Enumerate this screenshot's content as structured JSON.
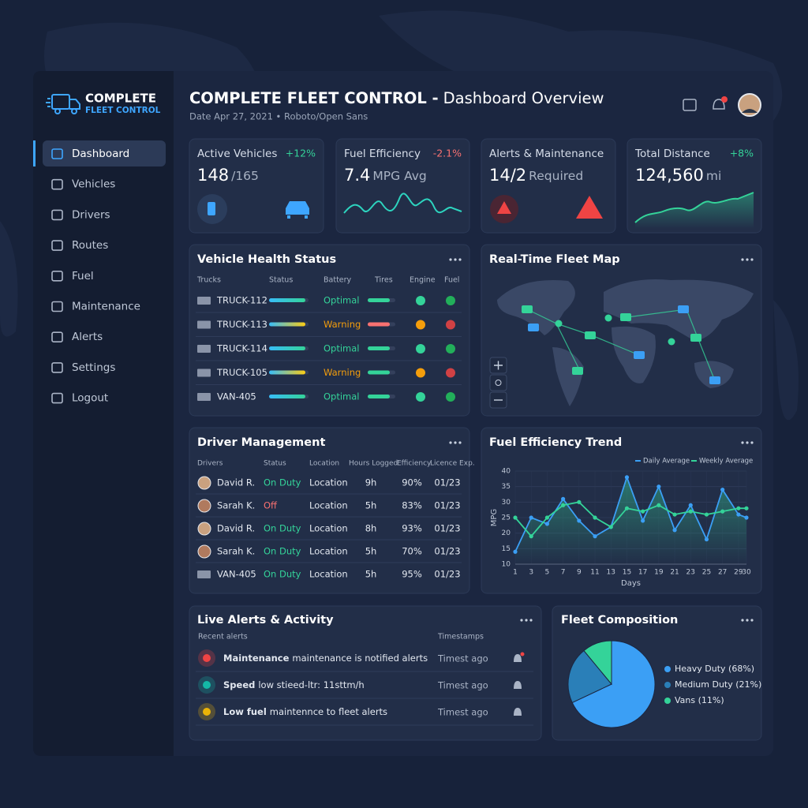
{
  "brand": {
    "name": "COMPLETE",
    "tagline": "FLEET CONTROL"
  },
  "nav": {
    "items": [
      "Dashboard",
      "Vehicles",
      "Drivers",
      "Routes",
      "Fuel",
      "Maintenance",
      "Alerts",
      "Settings",
      "Logout"
    ],
    "active": 0
  },
  "header": {
    "title": "COMPLETE FLEET CONTROL -",
    "title_rest": "Dashboard Overview",
    "subtitle": "Date Apr 27, 2021 • Roboto/Open Sans"
  },
  "kpis": [
    {
      "label": "Active Vehicles",
      "value": "148",
      "unit": "/165",
      "change": "+12%"
    },
    {
      "label": "Fuel Efficiency",
      "value": "7.4",
      "unit": "MPG Avg",
      "change": "-2.1%"
    },
    {
      "label": "Alerts & Maintenance",
      "value": "14/2",
      "unit": "Required"
    },
    {
      "label": "Total Distance",
      "value": "124,560",
      "unit": "mi",
      "change": "+8%"
    }
  ],
  "vehicle_health": {
    "title": "Vehicle Health Status",
    "columns": [
      "Trucks",
      "Status",
      "Battery",
      "Tires",
      "Engine",
      "Fuel"
    ],
    "rows": [
      {
        "name": "TRUCK-112",
        "battery": "Optimal",
        "color": "#34d399"
      },
      {
        "name": "TRUCK-113",
        "battery": "Warning",
        "color": "#f59e0b"
      },
      {
        "name": "TRUCK-114",
        "battery": "Optimal",
        "color": "#34d399"
      },
      {
        "name": "TRUCK-105",
        "battery": "Warning",
        "color": "#f59e0b"
      },
      {
        "name": "VAN-405",
        "battery": "Optimal",
        "color": "#34d399"
      }
    ]
  },
  "fleet_map": {
    "title": "Real-Time Fleet Map"
  },
  "drivers": {
    "title": "Driver Management",
    "columns": [
      "Drivers",
      "Status",
      "Location",
      "Hours Logged",
      "Efficiency",
      "Licence Exp."
    ],
    "rows": [
      {
        "cells": [
          "David R.",
          "On Duty",
          "Location",
          "9h",
          "90%",
          "01/23"
        ],
        "color": "#34d399"
      },
      {
        "cells": [
          "Sarah K.",
          "Off",
          "Location",
          "5h",
          "83%",
          "01/23"
        ],
        "color": "#f87171"
      },
      {
        "cells": [
          "David R.",
          "On Duty",
          "Location",
          "8h",
          "93%",
          "01/23"
        ],
        "color": "#34d399"
      },
      {
        "cells": [
          "Sarah K.",
          "On Duty",
          "Location",
          "5h",
          "70%",
          "01/23"
        ],
        "color": "#34d399"
      },
      {
        "cells": [
          "VAN-405",
          "On Duty",
          "Location",
          "5h",
          "95%",
          "01/23"
        ],
        "color": "#34d399"
      }
    ]
  },
  "fuel_trend": {
    "type": "line",
    "title": "Fuel Efficiency Trend",
    "x_label": "Days",
    "y_label": "MPG",
    "x": [
      1,
      3,
      5,
      7,
      9,
      11,
      13,
      15,
      17,
      19,
      21,
      23,
      25,
      27,
      29,
      30
    ],
    "series": [
      {
        "name": "Daily Average",
        "color": "#3b9ff5",
        "values": [
          14,
          25,
          23,
          31,
          24,
          19,
          22,
          38,
          24,
          35,
          21,
          29,
          18,
          34,
          26,
          25
        ]
      },
      {
        "name": "Weekly Average",
        "color": "#34d399",
        "values": [
          25,
          19,
          25,
          29,
          30,
          25,
          22,
          28,
          27,
          29,
          26,
          27,
          26,
          27,
          28,
          28
        ]
      }
    ],
    "xlim": [
      1,
      30
    ],
    "xticks": [
      1,
      3,
      5,
      7,
      9,
      11,
      13,
      15,
      17,
      19,
      21,
      23,
      25,
      27,
      29,
      30
    ],
    "ylim": [
      10,
      40
    ],
    "yticks": [
      10,
      15,
      20,
      25,
      30,
      35,
      40
    ],
    "grid": true,
    "legend": "top-right"
  },
  "alerts": {
    "title": "Live Alerts & Activity",
    "columns": [
      "Recent alerts",
      "Timestamps"
    ],
    "items": [
      {
        "title": "Maintenance",
        "text": "maintenance is notified alerts",
        "time": "Timest ago",
        "color": "#ef4444"
      },
      {
        "title": "Speed",
        "text": "low stieed-ltr: 11sttm/h",
        "time": "Timest ago",
        "color": "#14b8a6"
      },
      {
        "title": "Low fuel",
        "text": "maintennce to fleet alerts",
        "time": "Timest ago",
        "color": "#eab308"
      }
    ]
  },
  "fleet_composition": {
    "type": "pie",
    "title": "Fleet Composition",
    "categories": [
      "Heavy Duty (68%)",
      "Medium Duty (21%)",
      "Vans (11%)"
    ],
    "values": [
      68,
      21,
      11
    ],
    "colors": [
      "#3b9ff5",
      "#2a7fb8",
      "#34d399"
    ]
  }
}
